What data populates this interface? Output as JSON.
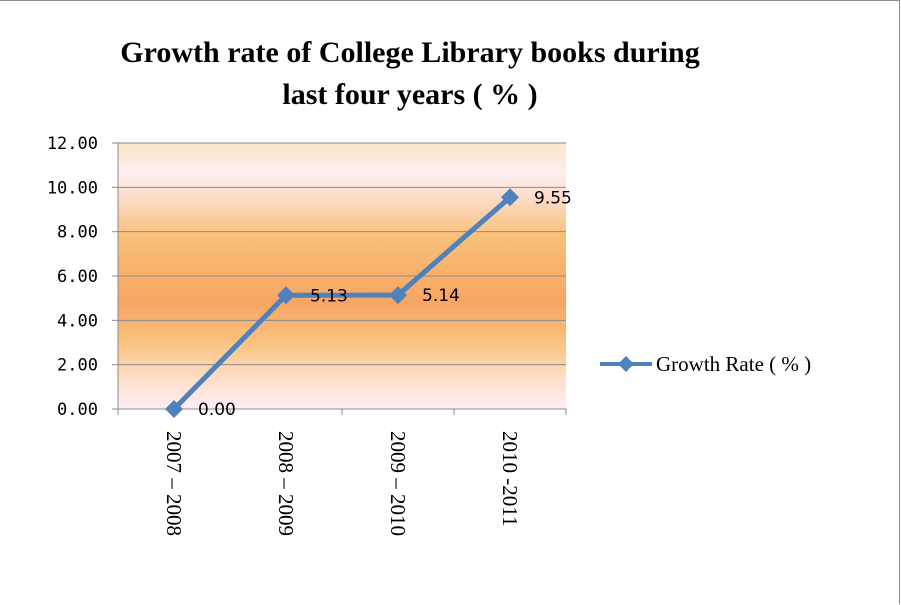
{
  "chart_data": {
    "type": "line",
    "title_line1": "Growth rate of College Library books during",
    "title_line2": "last four years ( % )",
    "categories": [
      "2007 – 2008",
      "2008 – 2009",
      "2009 – 2010",
      "2010 -2011"
    ],
    "series": [
      {
        "name": "Growth Rate  ( % )",
        "values": [
          0.0,
          5.13,
          5.14,
          9.55
        ],
        "color": "#4f81bd"
      }
    ],
    "data_labels": [
      "0.00",
      "5.13",
      "5.14",
      "9.55"
    ],
    "y_ticks": [
      "0.00",
      "2.00",
      "4.00",
      "6.00",
      "8.00",
      "10.00",
      "12.00"
    ],
    "ylim": [
      0,
      12
    ],
    "grid": true,
    "legend_position": "right",
    "colors": {
      "line": "#4f81bd",
      "plot_band_light": "#fde9f3",
      "plot_band_orange": "#f9c47e",
      "plot_band_deep": "#f7a866"
    }
  }
}
